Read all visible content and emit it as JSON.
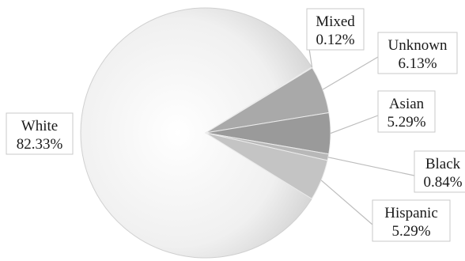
{
  "chart_data": {
    "type": "pie",
    "slices": [
      {
        "label": "White",
        "value": 82.33,
        "value_label": "82.33%"
      },
      {
        "label": "Mixed",
        "value": 0.12,
        "value_label": "0.12%"
      },
      {
        "label": "Unknown",
        "value": 6.13,
        "value_label": "6.13%"
      },
      {
        "label": "Asian",
        "value": 5.29,
        "value_label": "5.29%"
      },
      {
        "label": "Black",
        "value": 0.84,
        "value_label": "0.84%"
      },
      {
        "label": "Hispanic",
        "value": 5.29,
        "value_label": "5.29%"
      }
    ],
    "legend": "none",
    "colors": {
      "White": "#f2f2f2",
      "Mixed": "#cfcfcf",
      "Unknown": "#a9a9a9",
      "Asian": "#9a9a9a",
      "Black": "#b8b8b8",
      "Hispanic": "#c4c4c4"
    }
  }
}
